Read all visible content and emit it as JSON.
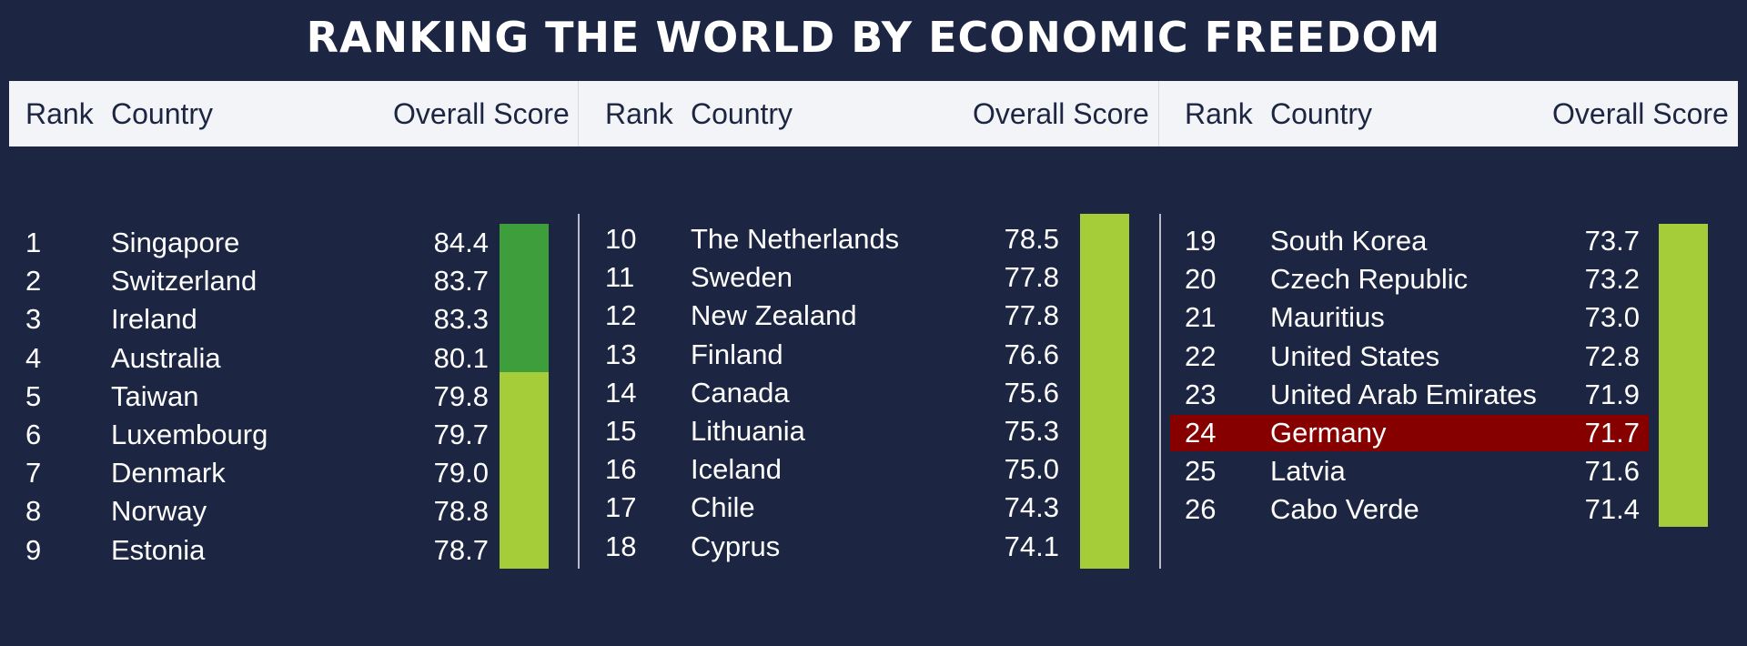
{
  "title": "RANKING THE WORLD BY ECONOMIC FREEDOM",
  "headers": {
    "rank": "Rank",
    "country": "Country",
    "score": "Overall Score"
  },
  "colors": {
    "background": "#1c2541",
    "header_bg": "#f3f4f7",
    "bar_dark_green": "#3e9e3c",
    "bar_light_green": "#a4cd39",
    "highlight_red": "#860000"
  },
  "chart_data": {
    "type": "table",
    "title": "RANKING THE WORLD BY ECONOMIC FREEDOM",
    "columns": [
      "Rank",
      "Country",
      "Overall Score"
    ],
    "rows": [
      {
        "rank": "1",
        "country": "Singapore",
        "score": "84.4",
        "category": "dark"
      },
      {
        "rank": "2",
        "country": "Switzerland",
        "score": "83.7",
        "category": "dark"
      },
      {
        "rank": "3",
        "country": "Ireland",
        "score": "83.3",
        "category": "dark"
      },
      {
        "rank": "4",
        "country": "Australia",
        "score": "80.1",
        "category": "dark"
      },
      {
        "rank": "5",
        "country": "Taiwan",
        "score": "79.8",
        "category": "light"
      },
      {
        "rank": "6",
        "country": "Luxembourg",
        "score": "79.7",
        "category": "light"
      },
      {
        "rank": "7",
        "country": "Denmark",
        "score": "79.0",
        "category": "light"
      },
      {
        "rank": "8",
        "country": "Norway",
        "score": "78.8",
        "category": "light"
      },
      {
        "rank": "9",
        "country": "Estonia",
        "score": "78.7",
        "category": "light"
      },
      {
        "rank": "10",
        "country": "The Netherlands",
        "score": "78.5",
        "category": "light"
      },
      {
        "rank": "11",
        "country": "Sweden",
        "score": "77.8",
        "category": "light"
      },
      {
        "rank": "12",
        "country": "New Zealand",
        "score": "77.8",
        "category": "light"
      },
      {
        "rank": "13",
        "country": "Finland",
        "score": "76.6",
        "category": "light"
      },
      {
        "rank": "14",
        "country": "Canada",
        "score": "75.6",
        "category": "light"
      },
      {
        "rank": "15",
        "country": "Lithuania",
        "score": "75.3",
        "category": "light"
      },
      {
        "rank": "16",
        "country": "Iceland",
        "score": "75.0",
        "category": "light"
      },
      {
        "rank": "17",
        "country": "Chile",
        "score": "74.3",
        "category": "light"
      },
      {
        "rank": "18",
        "country": "Cyprus",
        "score": "74.1",
        "category": "light"
      },
      {
        "rank": "19",
        "country": "South Korea",
        "score": "73.7",
        "category": "light"
      },
      {
        "rank": "20",
        "country": "Czech Republic",
        "score": "73.2",
        "category": "light"
      },
      {
        "rank": "21",
        "country": "Mauritius",
        "score": "73.0",
        "category": "light"
      },
      {
        "rank": "22",
        "country": "United States",
        "score": "72.8",
        "category": "light"
      },
      {
        "rank": "23",
        "country": "United Arab Emirates",
        "score": "71.9",
        "category": "light"
      },
      {
        "rank": "24",
        "country": "Germany",
        "score": "71.7",
        "category": "light",
        "highlight": true
      },
      {
        "rank": "25",
        "country": "Latvia",
        "score": "71.6",
        "category": "light"
      },
      {
        "rank": "26",
        "country": "Cabo Verde",
        "score": "71.4",
        "category": "light"
      }
    ]
  }
}
